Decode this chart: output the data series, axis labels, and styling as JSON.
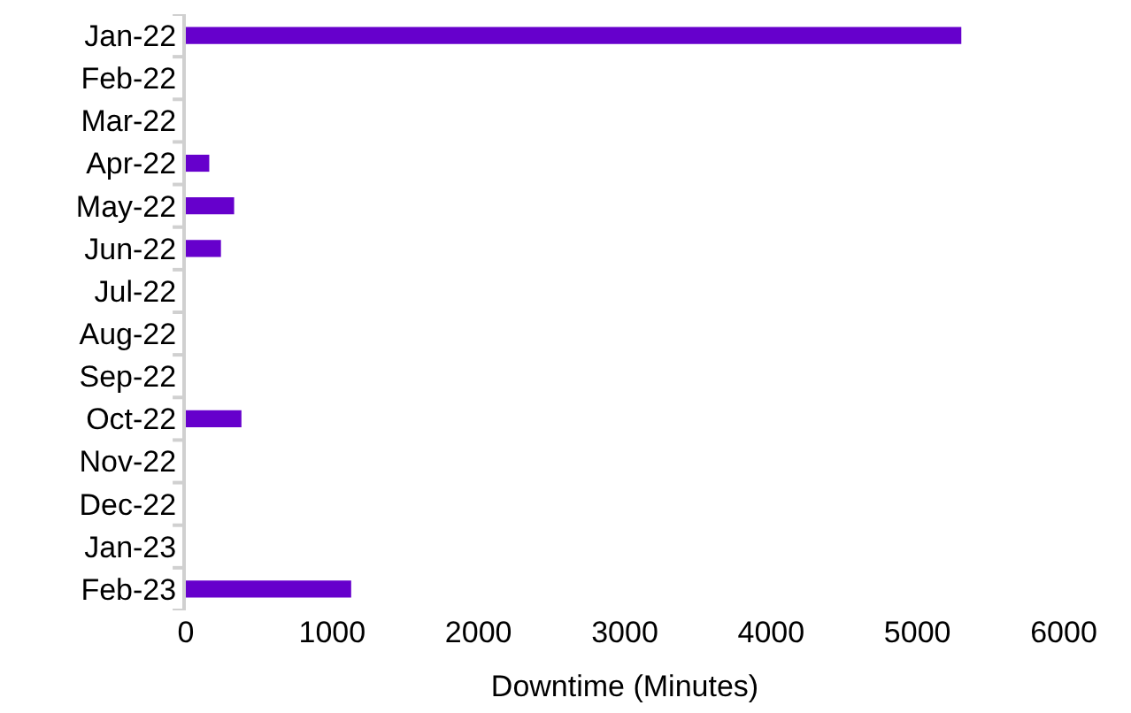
{
  "chart_data": {
    "type": "bar",
    "orientation": "horizontal",
    "xlabel": "Downtime (Minutes)",
    "categories": [
      "Jan-22",
      "Feb-22",
      "Mar-22",
      "Apr-22",
      "May-22",
      "Jun-22",
      "Jul-22",
      "Aug-22",
      "Sep-22",
      "Oct-22",
      "Nov-22",
      "Dec-22",
      "Jan-23",
      "Feb-23"
    ],
    "values": [
      5300,
      0,
      0,
      160,
      330,
      240,
      0,
      0,
      0,
      380,
      0,
      0,
      0,
      1130
    ],
    "color": "#6600cc",
    "xlim": [
      0,
      6000
    ],
    "xticks": [
      0,
      1000,
      2000,
      3000,
      4000,
      5000,
      6000
    ]
  }
}
